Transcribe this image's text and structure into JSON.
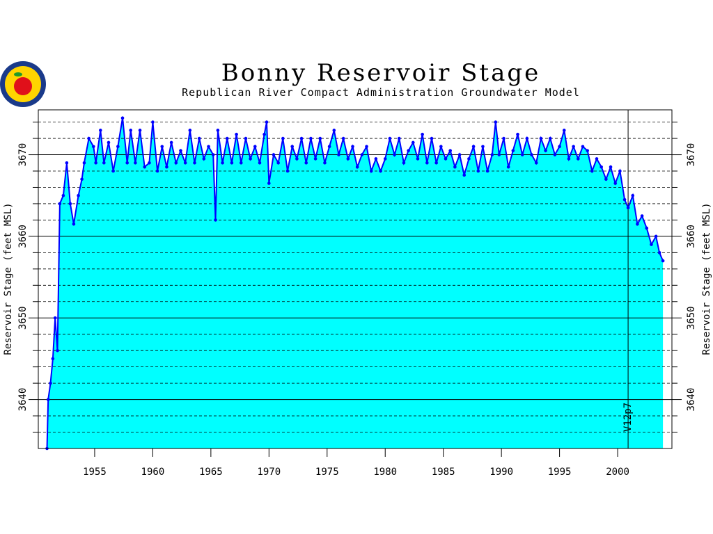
{
  "chart_data": {
    "type": "area",
    "title": "Bonny Reservoir Stage",
    "subtitle": "Republican River Compact Administration Groundwater Model",
    "y_label": "Reservoir Stage (feet MSL)",
    "line_color": "#0000ff",
    "fill_color": "#00ffff",
    "xlim": [
      1950.15,
      2004.67
    ],
    "ylim": [
      3634,
      3675.5
    ],
    "xticks": [
      1955,
      1960,
      1965,
      1970,
      1975,
      1980,
      1985,
      1990,
      1995,
      2000
    ],
    "yticks": [
      3640,
      3650,
      3660,
      3670
    ],
    "y_minor_ticks": [
      3636,
      3638,
      3642,
      3644,
      3646,
      3648,
      3652,
      3654,
      3656,
      3658,
      3662,
      3664,
      3666,
      3668,
      3672,
      3674
    ],
    "grid": true,
    "annotation": {
      "text": "V12p7",
      "x": 2000.9
    },
    "x": [
      1950.9,
      1951.0,
      1951.2,
      1951.4,
      1951.6,
      1951.8,
      1952.0,
      1952.3,
      1952.6,
      1952.9,
      1953.2,
      1953.6,
      1953.9,
      1954.1,
      1954.5,
      1954.9,
      1955.1,
      1955.5,
      1955.8,
      1956.2,
      1956.6,
      1957.0,
      1957.4,
      1957.8,
      1958.1,
      1958.5,
      1958.9,
      1959.3,
      1959.7,
      1960.0,
      1960.4,
      1960.8,
      1961.2,
      1961.6,
      1962.0,
      1962.4,
      1962.8,
      1963.2,
      1963.6,
      1964.0,
      1964.4,
      1964.8,
      1965.2,
      1965.4,
      1965.6,
      1966.0,
      1966.4,
      1966.8,
      1967.2,
      1967.6,
      1968.0,
      1968.4,
      1968.8,
      1969.2,
      1969.6,
      1969.8,
      1970.0,
      1970.4,
      1970.8,
      1971.2,
      1971.6,
      1972.0,
      1972.4,
      1972.8,
      1973.2,
      1973.6,
      1974.0,
      1974.4,
      1974.8,
      1975.2,
      1975.6,
      1976.0,
      1976.4,
      1976.8,
      1977.2,
      1977.6,
      1978.0,
      1978.4,
      1978.8,
      1979.2,
      1979.6,
      1980.0,
      1980.4,
      1980.8,
      1981.2,
      1981.6,
      1982.0,
      1982.4,
      1982.8,
      1983.2,
      1983.6,
      1984.0,
      1984.4,
      1984.8,
      1985.2,
      1985.6,
      1986.0,
      1986.4,
      1986.8,
      1987.2,
      1987.6,
      1988.0,
      1988.4,
      1988.8,
      1989.2,
      1989.5,
      1989.8,
      1990.2,
      1990.6,
      1991.0,
      1991.4,
      1991.8,
      1992.2,
      1992.6,
      1993.0,
      1993.4,
      1993.8,
      1994.2,
      1994.6,
      1995.0,
      1995.4,
      1995.8,
      1996.2,
      1996.6,
      1997.0,
      1997.4,
      1997.8,
      1998.2,
      1998.6,
      1999.0,
      1999.4,
      1999.8,
      2000.2,
      2000.6,
      2000.9,
      2001.3,
      2001.7,
      2002.1,
      2002.5,
      2002.9,
      2003.3,
      2003.6,
      2003.9
    ],
    "values": [
      3634,
      3640,
      3642,
      3645,
      3650,
      3646,
      3664,
      3665,
      3669,
      3664,
      3661.5,
      3665,
      3667,
      3669,
      3672,
      3671,
      3669,
      3673,
      3669,
      3671.5,
      3668,
      3671,
      3674.5,
      3669,
      3673,
      3669,
      3673,
      3668.5,
      3669,
      3674,
      3668,
      3671,
      3668.5,
      3671.5,
      3669,
      3670.5,
      3669,
      3673,
      3669,
      3672,
      3669.5,
      3671,
      3670,
      3662,
      3673,
      3669,
      3672,
      3669,
      3672.5,
      3669,
      3672,
      3669.5,
      3671,
      3669,
      3672.5,
      3674,
      3666.5,
      3670,
      3669,
      3672,
      3668,
      3671,
      3669.5,
      3672,
      3669,
      3672,
      3669.5,
      3672,
      3669,
      3671,
      3673,
      3670,
      3672,
      3669.5,
      3671,
      3668.5,
      3670,
      3671,
      3668,
      3669.5,
      3668,
      3669.5,
      3672,
      3670,
      3672,
      3669,
      3670.5,
      3671.5,
      3669.5,
      3672.5,
      3669,
      3672,
      3669,
      3671,
      3669.5,
      3670.5,
      3668.5,
      3670,
      3667.5,
      3669.5,
      3671,
      3668,
      3671,
      3668,
      3670,
      3674,
      3670,
      3672,
      3668.5,
      3670.5,
      3672.5,
      3670,
      3672,
      3670,
      3669,
      3672,
      3670.5,
      3672,
      3670,
      3671,
      3673,
      3669.5,
      3671,
      3669.5,
      3671,
      3670.5,
      3668,
      3669.5,
      3668.5,
      3667,
      3668.5,
      3666.5,
      3668,
      3664.5,
      3663.5,
      3665,
      3661.5,
      3662.5,
      3661,
      3659,
      3660,
      3658,
      3657
    ]
  }
}
